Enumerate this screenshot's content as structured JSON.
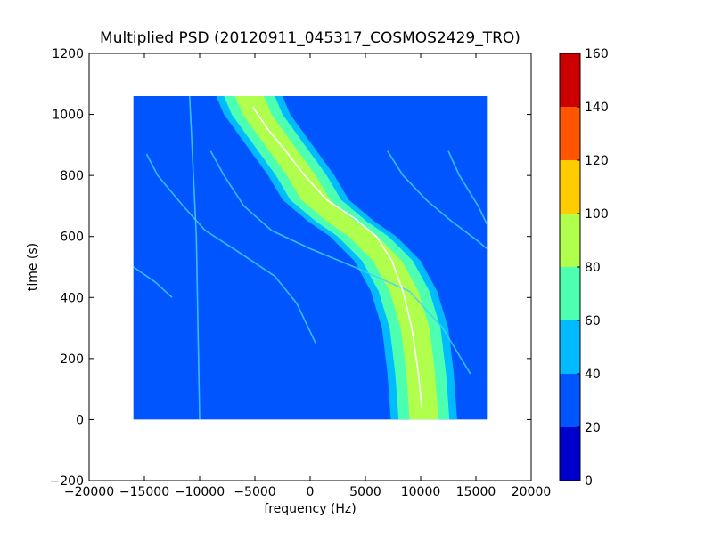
{
  "chart_data": {
    "type": "heatmap",
    "title": "Multiplied PSD (20120911_045317_COSMOS2429_TRO)",
    "xlabel": "frequency (Hz)",
    "ylabel": "time (s)",
    "xlim": [
      -20000,
      20000
    ],
    "ylim": [
      -200,
      1200
    ],
    "xticks": [
      -20000,
      -15000,
      -10000,
      -5000,
      0,
      5000,
      10000,
      15000,
      20000
    ],
    "yticks": [
      -200,
      0,
      200,
      400,
      600,
      800,
      1000,
      1200
    ],
    "xtick_labels": [
      "−20000",
      "−15000",
      "−10000",
      "−5000",
      "0",
      "5000",
      "10000",
      "15000",
      "20000"
    ],
    "ytick_labels": [
      "−200",
      "0",
      "200",
      "400",
      "600",
      "800",
      "1000",
      "1200"
    ],
    "image_extent": {
      "x": [
        -16000,
        16000
      ],
      "y": [
        0,
        1060
      ]
    },
    "background_level_color": "#0055ff",
    "colorbar": {
      "levels": [
        0,
        20,
        40,
        60,
        80,
        100,
        120,
        140,
        160
      ],
      "tick_labels": [
        "0",
        "20",
        "40",
        "60",
        "80",
        "100",
        "120",
        "140",
        "160"
      ],
      "colors": [
        "#0000cc",
        "#0055ff",
        "#00bbff",
        "#4dffb0",
        "#b0ff4d",
        "#ffcc00",
        "#ff5500",
        "#cc0000"
      ]
    },
    "main_trace": {
      "description_shape": "doppler S-curve",
      "points": [
        {
          "t": 1060,
          "f": -5500
        },
        {
          "t": 1000,
          "f": -4800
        },
        {
          "t": 900,
          "f": -2800
        },
        {
          "t": 800,
          "f": -800
        },
        {
          "t": 720,
          "f": 500
        },
        {
          "t": 650,
          "f": 2800
        },
        {
          "t": 600,
          "f": 4800
        },
        {
          "t": 520,
          "f": 7000
        },
        {
          "t": 420,
          "f": 8500
        },
        {
          "t": 300,
          "f": 9500
        },
        {
          "t": 150,
          "f": 10000
        },
        {
          "t": 0,
          "f": 10300
        }
      ],
      "band_halfwidths": {
        "level_40": 3000,
        "level_60": 2300,
        "level_80": 1300
      }
    },
    "white_line": [
      {
        "t": 1025,
        "f": -5200
      },
      {
        "t": 950,
        "f": -3800
      },
      {
        "t": 880,
        "f": -2200
      },
      {
        "t": 800,
        "f": -500
      },
      {
        "t": 720,
        "f": 1500
      },
      {
        "t": 660,
        "f": 4000
      },
      {
        "t": 600,
        "f": 6000
      },
      {
        "t": 520,
        "f": 7400
      },
      {
        "t": 420,
        "f": 8400
      },
      {
        "t": 300,
        "f": 9200
      },
      {
        "t": 150,
        "f": 9800
      },
      {
        "t": 40,
        "f": 10100
      }
    ],
    "faint_traces": [
      [
        {
          "t": 870,
          "f": -14800
        },
        {
          "t": 800,
          "f": -13800
        },
        {
          "t": 700,
          "f": -11500
        },
        {
          "t": 620,
          "f": -9500
        },
        {
          "t": 550,
          "f": -6500
        },
        {
          "t": 470,
          "f": -3200
        },
        {
          "t": 380,
          "f": -1200
        },
        {
          "t": 250,
          "f": 500
        }
      ],
      [
        {
          "t": 880,
          "f": -9000
        },
        {
          "t": 800,
          "f": -7800
        },
        {
          "t": 700,
          "f": -6000
        },
        {
          "t": 620,
          "f": -3500
        },
        {
          "t": 560,
          "f": 0
        },
        {
          "t": 500,
          "f": 4000
        },
        {
          "t": 420,
          "f": 9000
        },
        {
          "t": 300,
          "f": 12000
        },
        {
          "t": 150,
          "f": 14500
        }
      ],
      [
        {
          "t": 880,
          "f": 7000
        },
        {
          "t": 800,
          "f": 8400
        },
        {
          "t": 720,
          "f": 10500
        },
        {
          "t": 650,
          "f": 12800
        },
        {
          "t": 590,
          "f": 15000
        },
        {
          "t": 560,
          "f": 16000
        }
      ],
      [
        {
          "t": 880,
          "f": 12500
        },
        {
          "t": 800,
          "f": 13500
        },
        {
          "t": 700,
          "f": 15200
        },
        {
          "t": 640,
          "f": 16000
        }
      ],
      [
        {
          "t": 500,
          "f": -16000
        },
        {
          "t": 450,
          "f": -14000
        },
        {
          "t": 400,
          "f": -12500
        }
      ],
      [
        {
          "t": 1060,
          "f": -10900
        },
        {
          "t": 600,
          "f": -10300
        },
        {
          "t": 0,
          "f": -10000
        }
      ]
    ]
  }
}
